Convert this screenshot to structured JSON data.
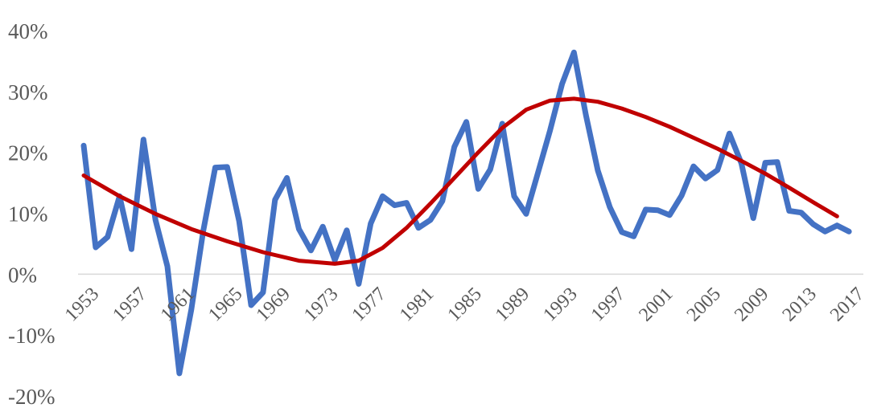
{
  "chart_data": {
    "type": "line",
    "title": "",
    "xlabel": "",
    "ylabel": "",
    "ylim": [
      -20,
      40
    ],
    "ytick_labels": [
      "40%",
      "30%",
      "20%",
      "10%",
      "0%",
      "-10%",
      "-20%"
    ],
    "ytick_values": [
      40,
      30,
      20,
      10,
      0,
      -10,
      -20
    ],
    "xtick_labels": [
      "1953",
      "1957",
      "1961",
      "1965",
      "1969",
      "1973",
      "1977",
      "1981",
      "1985",
      "1989",
      "1993",
      "1997",
      "2001",
      "2005",
      "2009",
      "2013",
      "2017"
    ],
    "grid": false,
    "legend": "none",
    "series": [
      {
        "color": "#4472C4",
        "x": [
          1953,
          1954,
          1955,
          1956,
          1957,
          1958,
          1959,
          1960,
          1961,
          1962,
          1963,
          1964,
          1965,
          1966,
          1967,
          1968,
          1969,
          1970,
          1971,
          1972,
          1973,
          1974,
          1975,
          1976,
          1977,
          1978,
          1979,
          1980,
          1981,
          1982,
          1983,
          1984,
          1985,
          1986,
          1987,
          1988,
          1989,
          1990,
          1991,
          1992,
          1993,
          1994,
          1995,
          1996,
          1997,
          1998,
          1999,
          2000,
          2001,
          2002,
          2003,
          2004,
          2005,
          2006,
          2007,
          2008,
          2009,
          2010,
          2011,
          2012,
          2013,
          2014,
          2015,
          2016,
          2017,
          2018
        ],
        "values": [
          21.1,
          4.4,
          6.1,
          12.8,
          4.1,
          22.1,
          8.9,
          1.3,
          -16.3,
          -5.8,
          7.1,
          17.5,
          17.6,
          8.7,
          -5.1,
          -3.0,
          12.2,
          15.8,
          7.4,
          3.9,
          7.8,
          2.3,
          7.2,
          -1.6,
          8.3,
          12.8,
          11.3,
          11.7,
          7.6,
          8.9,
          12.0,
          20.9,
          25.0,
          14.0,
          17.2,
          24.7,
          12.8,
          9.9,
          16.7,
          23.6,
          31.2,
          36.4,
          26.1,
          17.0,
          11.0,
          6.9,
          6.2,
          10.6,
          10.5,
          9.7,
          12.9,
          17.7,
          15.7,
          17.1,
          23.1,
          18.2,
          9.2,
          18.3,
          18.4,
          10.4,
          10.1,
          8.2,
          7.0,
          8.0,
          7.0,
          null
        ]
      },
      {
        "color": "#C00000",
        "x": [
          1953,
          1956,
          1959,
          1962,
          1965,
          1968,
          1971,
          1974,
          1976,
          1978,
          1980,
          1982,
          1984,
          1986,
          1988,
          1990,
          1992,
          1994,
          1996,
          1998,
          2000,
          2002,
          2004,
          2006,
          2008,
          2010,
          2012,
          2014,
          2016
        ],
        "values": [
          16.2,
          12.8,
          9.9,
          7.4,
          5.4,
          3.6,
          2.2,
          1.7,
          2.2,
          4.3,
          7.6,
          11.6,
          15.8,
          20.0,
          24.0,
          27.0,
          28.5,
          28.8,
          28.3,
          27.2,
          25.8,
          24.2,
          22.4,
          20.6,
          18.6,
          16.5,
          14.2,
          11.8,
          9.5
        ]
      }
    ]
  }
}
